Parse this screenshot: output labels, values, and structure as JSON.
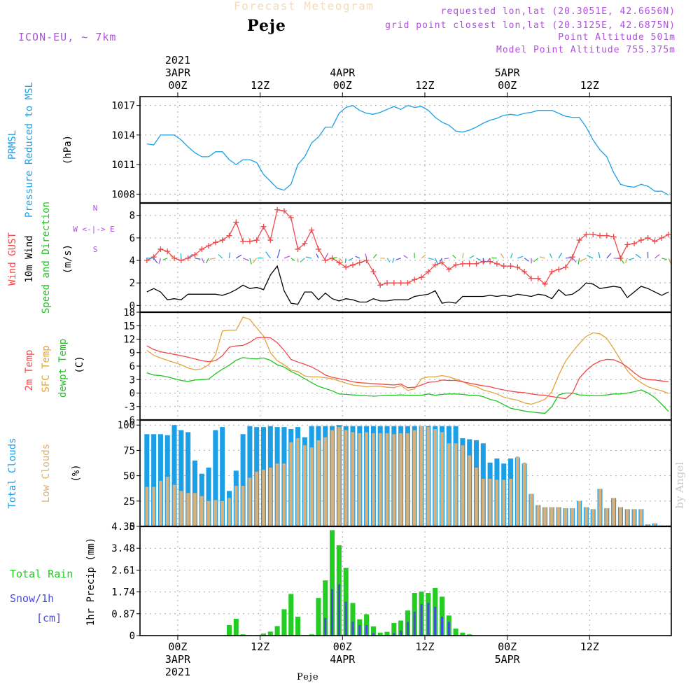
{
  "header": {
    "title": "Forecast Meteogram",
    "place": "Peje",
    "model": "ICON-EU, ~ 7km",
    "requested": "requested lon,lat (20.3051E, 42.6656N)",
    "grid_point": "grid point closest lon,lat (20.3125E, 42.6875N)",
    "point_altitude": "Point Altitude 501m",
    "model_altitude": "Model Point Altitude 755.375m"
  },
  "footer": "Peje",
  "signature": "by Angel",
  "colors": {
    "pressure": "#1ba0e8",
    "gust": "#f0484a",
    "wind": "#000000",
    "direction": "#22c422",
    "compass": "#b04fe0",
    "t2m": "#f0484a",
    "sfc": "#e3a33a",
    "dew": "#22c422",
    "total_clouds": "#1ba0e8",
    "low_clouds": "#d9b07a",
    "rain": "#24cc24",
    "snow": "#4a4ae0",
    "grid": "#aaaaaa",
    "frame": "#000000"
  },
  "chart_data": [
    {
      "type": "line",
      "name": "pressure",
      "ylabel_lines": [
        "PRMSL",
        "Pressure Reduced to MSL"
      ],
      "unit": "(hPa)",
      "yticks": [
        1008,
        1011,
        1014,
        1017
      ],
      "ylim": [
        1007.1,
        1017.9
      ],
      "x_hours": [
        -4.5,
        -3.5,
        -2.5,
        -1.5,
        -0.5,
        0.5,
        1.5,
        2.5,
        3.5,
        4.5,
        5.5,
        6.5,
        7.5,
        8.5,
        9.5,
        10.5,
        11.5,
        12.5,
        13.5,
        14.5,
        15.5,
        16.5,
        17.5,
        18.5,
        19.5,
        20.5,
        21.5,
        22.5,
        23.5,
        24.5,
        25.5,
        26.5,
        27.5,
        28.5,
        29.5,
        30.5,
        31.5,
        32.5,
        33.5,
        34.5,
        35.5,
        36.5,
        37.5,
        38.5,
        39.5,
        40.5,
        41.5,
        42.5,
        43.5,
        44.5,
        45.5,
        46.5,
        47.5,
        48.5,
        49.5,
        50.5,
        51.5,
        52.5,
        53.5,
        54.5,
        55.5,
        56.5,
        57.5,
        58.5,
        59.5,
        60.5,
        61.5,
        62.5,
        63.5,
        64.5,
        65.5,
        66.5,
        67.5,
        68.5,
        69.5,
        70.5,
        71.5
      ],
      "values": [
        1013.1,
        1013.0,
        1014.0,
        1014.0,
        1014.0,
        1013.5,
        1012.8,
        1012.2,
        1011.8,
        1011.8,
        1012.3,
        1012.3,
        1011.5,
        1011.0,
        1011.5,
        1011.5,
        1011.2,
        1010.0,
        1009.3,
        1008.6,
        1008.4,
        1009.0,
        1011.0,
        1011.8,
        1013.2,
        1013.8,
        1014.8,
        1014.8,
        1016.2,
        1016.8,
        1017.0,
        1016.5,
        1016.2,
        1016.1,
        1016.3,
        1016.6,
        1016.9,
        1016.6,
        1017.0,
        1016.8,
        1016.9,
        1016.5,
        1015.8,
        1015.3,
        1015.0,
        1014.4,
        1014.3,
        1014.5,
        1014.8,
        1015.2,
        1015.5,
        1015.7,
        1016.0,
        1016.1,
        1016.0,
        1016.2,
        1016.3,
        1016.5,
        1016.5,
        1016.5,
        1016.2,
        1015.9,
        1015.8,
        1015.8,
        1014.8,
        1013.5,
        1012.5,
        1011.8,
        1010.2,
        1009.0,
        1008.8,
        1008.7,
        1009.0,
        1008.8,
        1008.3,
        1008.3,
        1007.9
      ]
    },
    {
      "type": "line",
      "name": "wind",
      "ylabel_lines": [
        "Wind GUST",
        "10m Wind",
        "Speed and Direction"
      ],
      "unit": "(m/s)",
      "compass": [
        "N",
        "W <-|-> E",
        "S"
      ],
      "yticks": [
        0,
        2,
        4,
        6,
        8
      ],
      "ylim": [
        -0.6,
        9.1
      ],
      "direction_row_y": 4.2,
      "x_hours": [
        -4.5,
        -3.5,
        -2.5,
        -1.5,
        -0.5,
        0.5,
        1.5,
        2.5,
        3.5,
        4.5,
        5.5,
        6.5,
        7.5,
        8.5,
        9.5,
        10.5,
        11.5,
        12.5,
        13.5,
        14.5,
        15.5,
        16.5,
        17.5,
        18.5,
        19.5,
        20.5,
        21.5,
        22.5,
        23.5,
        24.5,
        25.5,
        26.5,
        27.5,
        28.5,
        29.5,
        30.5,
        31.5,
        32.5,
        33.5,
        34.5,
        35.5,
        36.5,
        37.5,
        38.5,
        39.5,
        40.5,
        41.5,
        42.5,
        43.5,
        44.5,
        45.5,
        46.5,
        47.5,
        48.5,
        49.5,
        50.5,
        51.5,
        52.5,
        53.5,
        54.5,
        55.5,
        56.5,
        57.5,
        58.5,
        59.5,
        60.5,
        61.5,
        62.5,
        63.5,
        64.5,
        65.5,
        66.5,
        67.5,
        68.5,
        69.5,
        70.5,
        71.5
      ],
      "gust": [
        4.0,
        4.3,
        5.0,
        4.8,
        4.2,
        4.0,
        4.2,
        4.5,
        5.0,
        5.3,
        5.6,
        5.8,
        6.2,
        7.4,
        5.7,
        5.7,
        5.8,
        7.0,
        5.8,
        8.5,
        8.4,
        7.8,
        5.0,
        5.5,
        6.7,
        5.0,
        4.0,
        4.2,
        3.8,
        3.4,
        3.6,
        3.8,
        4.0,
        3.0,
        1.8,
        2.0,
        2.0,
        2.0,
        2.0,
        2.3,
        2.5,
        3.0,
        3.6,
        3.8,
        3.2,
        3.6,
        3.7,
        3.7,
        3.7,
        3.9,
        3.9,
        3.7,
        3.5,
        3.5,
        3.4,
        3.0,
        2.4,
        2.4,
        1.9,
        3.0,
        3.2,
        3.4,
        4.3,
        5.8,
        6.3,
        6.3,
        6.2,
        6.2,
        6.1,
        4.2,
        5.4,
        5.5,
        5.8,
        6.0,
        5.7,
        6.0,
        6.3
      ],
      "speed": [
        1.2,
        1.5,
        1.2,
        0.5,
        0.6,
        0.5,
        1.0,
        1.0,
        1.0,
        1.0,
        1.0,
        0.9,
        1.1,
        1.4,
        1.8,
        1.5,
        1.6,
        1.4,
        2.7,
        3.5,
        1.3,
        0.2,
        0.1,
        1.2,
        1.2,
        0.5,
        1.1,
        0.6,
        0.4,
        0.6,
        0.5,
        0.3,
        0.3,
        0.6,
        0.4,
        0.4,
        0.5,
        0.5,
        0.5,
        0.8,
        0.9,
        1.0,
        1.3,
        0.2,
        0.3,
        0.2,
        0.8,
        0.8,
        0.8,
        0.8,
        0.9,
        0.8,
        0.9,
        0.8,
        1.0,
        0.9,
        0.8,
        1.0,
        0.9,
        0.6,
        1.4,
        0.9,
        1.0,
        1.4,
        2.0,
        1.9,
        1.5,
        1.6,
        1.7,
        1.6,
        0.7,
        1.2,
        1.7,
        1.5,
        1.2,
        0.9,
        1.2
      ]
    },
    {
      "type": "line",
      "name": "temperature",
      "ylabel_lines": [
        "2m Temp",
        "SFC Temp",
        "dewpt Temp"
      ],
      "unit": "(C)",
      "yticks": [
        -6,
        -3,
        0,
        3,
        6,
        9,
        12,
        15,
        18
      ],
      "ylim": [
        -6,
        18
      ],
      "x_hours": [
        -4.5,
        -3.5,
        -2.5,
        -1.5,
        -0.5,
        0.5,
        1.5,
        2.5,
        3.5,
        4.5,
        5.5,
        6.5,
        7.5,
        8.5,
        9.5,
        10.5,
        11.5,
        12.5,
        13.5,
        14.5,
        15.5,
        16.5,
        17.5,
        18.5,
        19.5,
        20.5,
        21.5,
        22.5,
        23.5,
        24.5,
        25.5,
        26.5,
        27.5,
        28.5,
        29.5,
        30.5,
        31.5,
        32.5,
        33.5,
        34.5,
        35.5,
        36.5,
        37.5,
        38.5,
        39.5,
        40.5,
        41.5,
        42.5,
        43.5,
        44.5,
        45.5,
        46.5,
        47.5,
        48.5,
        49.5,
        50.5,
        51.5,
        52.5,
        53.5,
        54.5,
        55.5,
        56.5,
        57.5,
        58.5,
        59.5,
        60.5,
        61.5,
        62.5,
        63.5,
        64.5,
        65.5,
        66.5,
        67.5,
        68.5,
        69.5,
        70.5,
        71.5
      ],
      "t2m": [
        10.5,
        9.7,
        9.2,
        8.9,
        8.6,
        8.3,
        8.0,
        7.6,
        7.2,
        7.0,
        7.2,
        8.3,
        10.2,
        10.5,
        10.6,
        11.3,
        12.3,
        12.4,
        12.3,
        11.2,
        9.5,
        7.5,
        6.9,
        6.4,
        5.8,
        5.0,
        4.0,
        3.5,
        3.2,
        2.9,
        2.5,
        2.3,
        2.2,
        2.1,
        2.0,
        1.9,
        1.8,
        2.0,
        1.2,
        1.3,
        1.8,
        2.4,
        2.5,
        2.9,
        2.8,
        2.8,
        2.5,
        2.2,
        1.9,
        1.6,
        1.4,
        1.0,
        0.7,
        0.4,
        0.2,
        0.1,
        -0.2,
        -0.4,
        -0.5,
        -0.8,
        -1.0,
        -1.3,
        0.0,
        3.3,
        5.0,
        6.3,
        7.1,
        7.5,
        7.4,
        6.8,
        5.8,
        4.5,
        3.4,
        3.0,
        2.9,
        2.7,
        2.5
      ],
      "sfc": [
        9.5,
        8.4,
        7.8,
        7.3,
        6.8,
        6.3,
        5.6,
        5.2,
        5.4,
        6.3,
        8.5,
        13.8,
        14.0,
        14.0,
        16.9,
        16.4,
        14.5,
        12.7,
        9.0,
        7.2,
        6.3,
        5.1,
        4.8,
        3.8,
        3.6,
        3.6,
        3.4,
        3.2,
        2.7,
        2.2,
        1.8,
        1.6,
        1.4,
        1.5,
        1.5,
        1.3,
        1.2,
        1.7,
        0.6,
        0.9,
        3.2,
        3.6,
        3.6,
        3.9,
        3.6,
        3.1,
        2.6,
        1.8,
        1.4,
        0.7,
        0.3,
        -0.2,
        -0.9,
        -1.3,
        -1.6,
        -2.2,
        -2.5,
        -2.0,
        -1.4,
        0.3,
        4.0,
        7.1,
        9.2,
        11.0,
        12.6,
        13.4,
        13.2,
        12.2,
        9.9,
        7.4,
        5.0,
        3.4,
        2.3,
        1.4,
        0.9,
        0.5,
        -0.1
      ],
      "dew": [
        4.5,
        4.0,
        3.9,
        3.6,
        3.2,
        2.8,
        2.6,
        2.9,
        3.0,
        3.1,
        4.3,
        5.3,
        6.2,
        7.3,
        7.9,
        7.7,
        7.6,
        7.8,
        7.3,
        6.3,
        5.8,
        4.8,
        4.1,
        3.2,
        2.3,
        1.5,
        1.0,
        0.5,
        -0.2,
        -0.3,
        -0.4,
        -0.5,
        -0.6,
        -0.7,
        -0.6,
        -0.5,
        -0.5,
        -0.4,
        -0.5,
        -0.5,
        -0.5,
        -0.2,
        -0.5,
        -0.3,
        -0.2,
        -0.2,
        -0.3,
        -0.5,
        -0.5,
        -0.8,
        -1.4,
        -1.8,
        -2.6,
        -3.4,
        -3.7,
        -4.0,
        -4.2,
        -4.4,
        -4.5,
        -3.0,
        -0.4,
        0.0,
        0.0,
        -0.4,
        -0.5,
        -0.6,
        -0.6,
        -0.4,
        -0.2,
        -0.2,
        0.0,
        0.3,
        0.7,
        0.0,
        -1.0,
        -2.5,
        -4.1
      ]
    },
    {
      "type": "bar",
      "name": "clouds",
      "ylabel_lines": [
        "Total Clouds",
        "Low Clouds"
      ],
      "unit": "(%)",
      "yticks": [
        0,
        25,
        50,
        75,
        100
      ],
      "ylim": [
        0,
        105
      ],
      "x_hours": [
        -4.5,
        -3.5,
        -2.5,
        -1.5,
        -0.5,
        0.5,
        1.5,
        2.5,
        3.5,
        4.5,
        5.5,
        6.5,
        7.5,
        8.5,
        9.5,
        10.5,
        11.5,
        12.5,
        13.5,
        14.5,
        15.5,
        16.5,
        17.5,
        18.5,
        19.5,
        20.5,
        21.5,
        22.5,
        23.5,
        24.5,
        25.5,
        26.5,
        27.5,
        28.5,
        29.5,
        30.5,
        31.5,
        32.5,
        33.5,
        34.5,
        35.5,
        36.5,
        37.5,
        38.5,
        39.5,
        40.5,
        41.5,
        42.5,
        43.5,
        44.5,
        45.5,
        46.5,
        47.5,
        48.5,
        49.5,
        50.5,
        51.5,
        52.5,
        53.5,
        54.5,
        55.5,
        56.5,
        57.5,
        58.5,
        59.5,
        60.5,
        61.5,
        62.5,
        63.5,
        64.5,
        65.5,
        66.5,
        67.5,
        68.5,
        69.5,
        70.5,
        71.5
      ],
      "total": [
        91,
        91,
        91,
        90,
        100,
        95,
        93,
        65,
        52,
        58,
        95,
        98,
        35,
        55,
        91,
        99,
        98,
        98,
        99,
        98,
        98,
        96,
        98,
        88,
        99,
        99,
        99,
        99,
        100,
        99,
        99,
        99,
        99,
        99,
        99,
        99,
        99,
        99,
        99,
        99,
        99,
        99,
        99,
        99,
        99,
        99,
        87,
        86,
        85,
        82,
        63,
        67,
        62,
        67,
        68,
        62,
        32,
        21,
        19,
        19,
        19,
        18,
        18,
        25,
        19,
        17,
        37,
        18,
        28,
        19,
        17,
        17,
        17,
        2,
        3,
        1,
        1
      ],
      "low": [
        39,
        39,
        45,
        49,
        41,
        35,
        33,
        33,
        30,
        25,
        26,
        25,
        28,
        40,
        40,
        48,
        54,
        56,
        58,
        62,
        62,
        83,
        87,
        80,
        78,
        85,
        88,
        95,
        98,
        95,
        93,
        92,
        93,
        92,
        92,
        92,
        91,
        92,
        92,
        95,
        99,
        98,
        96,
        93,
        82,
        82,
        80,
        70,
        58,
        47,
        47,
        46,
        46,
        47,
        69,
        63,
        32,
        21,
        19,
        19,
        19,
        18,
        18,
        25,
        19,
        17,
        37,
        18,
        28,
        19,
        17,
        17,
        17,
        2,
        3,
        1,
        1
      ]
    },
    {
      "type": "bar",
      "name": "precipitation",
      "ylabel_lines": [
        "Total  Rain",
        "Snow/1h",
        "[cm]"
      ],
      "unit": "1hr Precip (mm)",
      "yticks": [
        0,
        0.87,
        1.74,
        2.61,
        3.48,
        4.35
      ],
      "ylim": [
        0,
        4.35
      ],
      "x_hours": [
        -4.5,
        -3.5,
        -2.5,
        -1.5,
        -0.5,
        0.5,
        1.5,
        2.5,
        3.5,
        4.5,
        5.5,
        6.5,
        7.5,
        8.5,
        9.5,
        10.5,
        11.5,
        12.5,
        13.5,
        14.5,
        15.5,
        16.5,
        17.5,
        18.5,
        19.5,
        20.5,
        21.5,
        22.5,
        23.5,
        24.5,
        25.5,
        26.5,
        27.5,
        28.5,
        29.5,
        30.5,
        31.5,
        32.5,
        33.5,
        34.5,
        35.5,
        36.5,
        37.5,
        38.5,
        39.5,
        40.5,
        41.5,
        42.5,
        43.5,
        44.5,
        45.5,
        46.5,
        47.5,
        48.5,
        49.5,
        50.5,
        51.5,
        52.5,
        53.5,
        54.5,
        55.5,
        56.5,
        57.5,
        58.5,
        59.5,
        60.5,
        61.5,
        62.5,
        63.5,
        64.5,
        65.5,
        66.5,
        67.5,
        68.5,
        69.5,
        70.5,
        71.5
      ],
      "rain": [
        0,
        0,
        0,
        0,
        0,
        0,
        0,
        0,
        0,
        0,
        0,
        0,
        0.42,
        0.67,
        0.05,
        0.02,
        0.02,
        0.08,
        0.16,
        0.38,
        1.05,
        1.66,
        0.75,
        0.02,
        0.05,
        1.5,
        2.2,
        4.2,
        3.6,
        2.7,
        1.3,
        0.65,
        0.85,
        0.37,
        0.12,
        0.15,
        0.5,
        0.6,
        1.0,
        1.7,
        1.75,
        1.7,
        1.9,
        1.55,
        0.8,
        0.28,
        0.12,
        0.05,
        0,
        0,
        0,
        0,
        0,
        0,
        0,
        0,
        0,
        0,
        0,
        0,
        0,
        0,
        0,
        0,
        0,
        0,
        0,
        0,
        0,
        0,
        0,
        0,
        0,
        0,
        0,
        0,
        0
      ],
      "snow": [
        0,
        0,
        0,
        0,
        0,
        0,
        0,
        0,
        0,
        0,
        0,
        0,
        0,
        0,
        0,
        0,
        0,
        0,
        0,
        0,
        0,
        0,
        0,
        0,
        0,
        0,
        0.7,
        1.85,
        2.05,
        1.35,
        0.55,
        0.42,
        0.42,
        0.1,
        0,
        0,
        0.1,
        0.2,
        0.55,
        0.95,
        1.25,
        1.3,
        1.15,
        0.75,
        0.55,
        0,
        0,
        0,
        0,
        0,
        0,
        0,
        0,
        0,
        0,
        0,
        0,
        0,
        0,
        0,
        0,
        0,
        0,
        0,
        0,
        0,
        0,
        0,
        0,
        0,
        0,
        0,
        0,
        0,
        0,
        0,
        0
      ]
    }
  ],
  "time_axis": {
    "range_hours": [
      -5.5,
      71.9
    ],
    "top_labels": [
      {
        "hour": 0,
        "lines": [
          "2021",
          "3APR",
          "00Z"
        ]
      },
      {
        "hour": 12,
        "lines": [
          "12Z"
        ]
      },
      {
        "hour": 24,
        "lines": [
          "4APR",
          "00Z"
        ]
      },
      {
        "hour": 36,
        "lines": [
          "12Z"
        ]
      },
      {
        "hour": 48,
        "lines": [
          "5APR",
          "00Z"
        ]
      },
      {
        "hour": 60,
        "lines": [
          "12Z"
        ]
      }
    ],
    "bottom_labels": [
      {
        "hour": 0,
        "lines": [
          "00Z",
          "3APR",
          "2021"
        ]
      },
      {
        "hour": 12,
        "lines": [
          "12Z"
        ]
      },
      {
        "hour": 24,
        "lines": [
          "00Z",
          "4APR"
        ]
      },
      {
        "hour": 36,
        "lines": [
          "12Z"
        ]
      },
      {
        "hour": 48,
        "lines": [
          "00Z",
          "5APR"
        ]
      },
      {
        "hour": 60,
        "lines": [
          "12Z"
        ]
      }
    ]
  }
}
